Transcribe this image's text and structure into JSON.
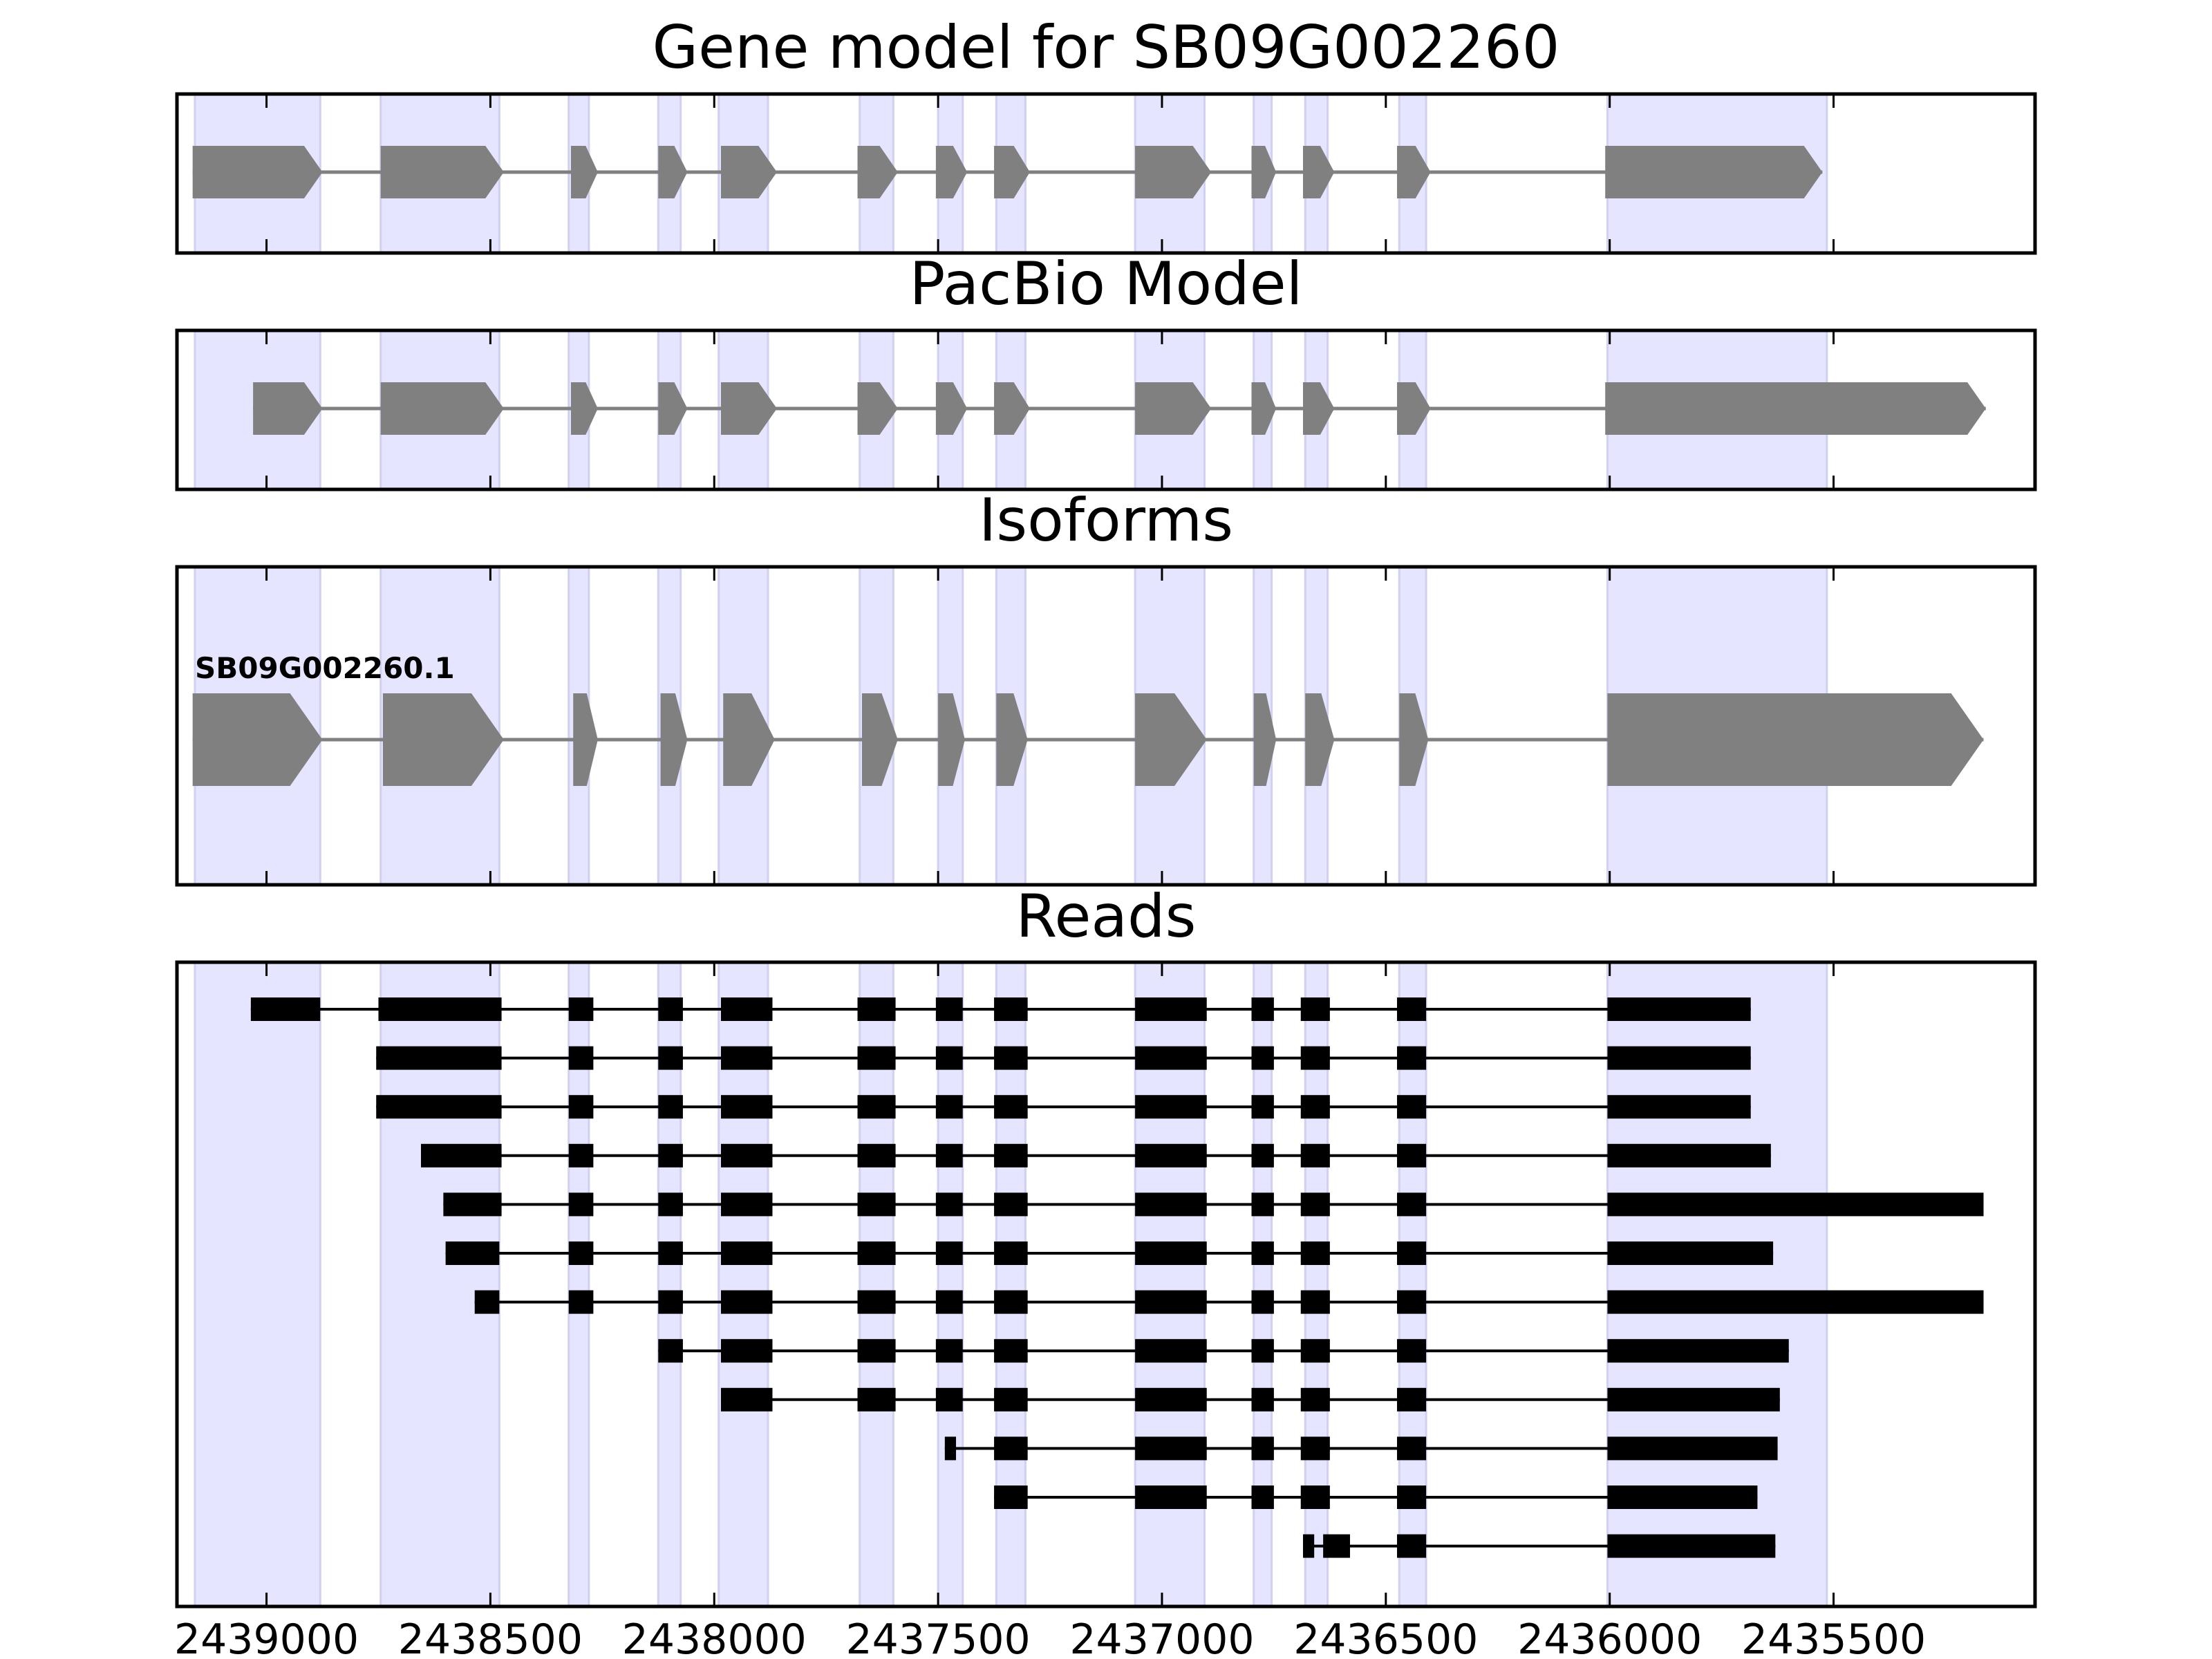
{
  "chart_data": {
    "type": "gene-structure",
    "axis": {
      "xlim": [
        2439200,
        2435050
      ],
      "reversed": true,
      "ticks": [
        2439000,
        2438500,
        2438000,
        2437500,
        2437000,
        2436500,
        2436000,
        2435500
      ],
      "tick_labels": [
        "2439000",
        "2438500",
        "2438000",
        "2437500",
        "2437000",
        "2436500",
        "2436000",
        "2435500"
      ]
    },
    "colors": {
      "shade": "#e5e5ff",
      "exon": "#808080",
      "intron": "#808080",
      "read": "#000000"
    },
    "shaded_regions": [
      [
        2439160,
        2438880
      ],
      [
        2438745,
        2438480
      ],
      [
        2438325,
        2438280
      ],
      [
        2438125,
        2438075
      ],
      [
        2437990,
        2437880
      ],
      [
        2437675,
        2437600
      ],
      [
        2437500,
        2437445
      ],
      [
        2437370,
        2437305
      ],
      [
        2437060,
        2436905
      ],
      [
        2436795,
        2436755
      ],
      [
        2436680,
        2436630
      ],
      [
        2436470,
        2436410
      ],
      [
        2436005,
        2435515
      ]
    ],
    "panels": [
      {
        "title": "Gene model for SB09G002260",
        "models": [
          {
            "label": "",
            "exons": [
              [
                2439165,
                2438875
              ],
              [
                2438745,
                2438470
              ],
              [
                2438320,
                2438260
              ],
              [
                2438125,
                2438060
              ],
              [
                2437985,
                2437860
              ],
              [
                2437680,
                2437590
              ],
              [
                2437505,
                2437435
              ],
              [
                2437375,
                2437295
              ],
              [
                2437060,
                2436890
              ],
              [
                2436800,
                2436745
              ],
              [
                2436685,
                2436615
              ],
              [
                2436475,
                2436400
              ],
              [
                2436010,
                2435525
              ]
            ]
          }
        ]
      },
      {
        "title": "PacBio Model",
        "models": [
          {
            "label": "",
            "exons": [
              [
                2439030,
                2438875
              ],
              [
                2438745,
                2438470
              ],
              [
                2438320,
                2438260
              ],
              [
                2438125,
                2438060
              ],
              [
                2437985,
                2437860
              ],
              [
                2437680,
                2437590
              ],
              [
                2437505,
                2437435
              ],
              [
                2437375,
                2437295
              ],
              [
                2437060,
                2436890
              ],
              [
                2436800,
                2436745
              ],
              [
                2436685,
                2436615
              ],
              [
                2436475,
                2436400
              ],
              [
                2436010,
                2435160
              ]
            ]
          }
        ]
      },
      {
        "title": "Isoforms",
        "models": [
          {
            "label": "SB09G002260.1",
            "exons": [
              [
                2439165,
                2438875
              ],
              [
                2438740,
                2438470
              ],
              [
                2438315,
                2438260
              ],
              [
                2438120,
                2438060
              ],
              [
                2437980,
                2437865
              ],
              [
                2437670,
                2437590
              ],
              [
                2437500,
                2437440
              ],
              [
                2437370,
                2437300
              ],
              [
                2437060,
                2436900
              ],
              [
                2436795,
                2436745
              ],
              [
                2436680,
                2436615
              ],
              [
                2436470,
                2436405
              ],
              [
                2436005,
                2435165
              ]
            ]
          }
        ]
      },
      {
        "title": "Reads",
        "reads": [
          {
            "exons": [
              [
                2439035,
                2438880
              ],
              [
                2438750,
                2438475
              ],
              [
                2438325,
                2438270
              ],
              [
                2438125,
                2438070
              ],
              [
                2437985,
                2437870
              ],
              [
                2437680,
                2437595
              ],
              [
                2437505,
                2437445
              ],
              [
                2437375,
                2437300
              ],
              [
                2437060,
                2436900
              ],
              [
                2436800,
                2436750
              ],
              [
                2436690,
                2436625
              ],
              [
                2436475,
                2436410
              ],
              [
                2436005,
                2435685
              ]
            ]
          },
          {
            "exons": [
              [
                2438755,
                2438475
              ],
              [
                2438325,
                2438270
              ],
              [
                2438125,
                2438070
              ],
              [
                2437985,
                2437870
              ],
              [
                2437680,
                2437595
              ],
              [
                2437505,
                2437445
              ],
              [
                2437375,
                2437300
              ],
              [
                2437060,
                2436900
              ],
              [
                2436800,
                2436750
              ],
              [
                2436690,
                2436625
              ],
              [
                2436475,
                2436410
              ],
              [
                2436005,
                2435685
              ]
            ]
          },
          {
            "exons": [
              [
                2438755,
                2438475
              ],
              [
                2438325,
                2438270
              ],
              [
                2438125,
                2438070
              ],
              [
                2437985,
                2437870
              ],
              [
                2437680,
                2437595
              ],
              [
                2437505,
                2437445
              ],
              [
                2437375,
                2437300
              ],
              [
                2437060,
                2436900
              ],
              [
                2436800,
                2436750
              ],
              [
                2436690,
                2436625
              ],
              [
                2436475,
                2436410
              ],
              [
                2436005,
                2435685
              ]
            ]
          },
          {
            "exons": [
              [
                2438655,
                2438475
              ],
              [
                2438325,
                2438270
              ],
              [
                2438125,
                2438070
              ],
              [
                2437985,
                2437870
              ],
              [
                2437680,
                2437595
              ],
              [
                2437505,
                2437445
              ],
              [
                2437375,
                2437300
              ],
              [
                2437060,
                2436900
              ],
              [
                2436800,
                2436750
              ],
              [
                2436690,
                2436625
              ],
              [
                2436475,
                2436410
              ],
              [
                2436005,
                2435640
              ]
            ]
          },
          {
            "exons": [
              [
                2438605,
                2438475
              ],
              [
                2438325,
                2438270
              ],
              [
                2438125,
                2438070
              ],
              [
                2437985,
                2437870
              ],
              [
                2437680,
                2437595
              ],
              [
                2437505,
                2437445
              ],
              [
                2437375,
                2437300
              ],
              [
                2437060,
                2436900
              ],
              [
                2436800,
                2436750
              ],
              [
                2436690,
                2436625
              ],
              [
                2436475,
                2436410
              ],
              [
                2436005,
                2435165
              ]
            ]
          },
          {
            "exons": [
              [
                2438600,
                2438480
              ],
              [
                2438325,
                2438270
              ],
              [
                2438125,
                2438070
              ],
              [
                2437985,
                2437870
              ],
              [
                2437680,
                2437595
              ],
              [
                2437505,
                2437445
              ],
              [
                2437375,
                2437300
              ],
              [
                2437060,
                2436900
              ],
              [
                2436800,
                2436750
              ],
              [
                2436690,
                2436625
              ],
              [
                2436475,
                2436410
              ],
              [
                2436005,
                2435635
              ]
            ]
          },
          {
            "exons": [
              [
                2438535,
                2438480
              ],
              [
                2438325,
                2438270
              ],
              [
                2438125,
                2438070
              ],
              [
                2437985,
                2437870
              ],
              [
                2437680,
                2437595
              ],
              [
                2437505,
                2437445
              ],
              [
                2437375,
                2437300
              ],
              [
                2437060,
                2436900
              ],
              [
                2436800,
                2436750
              ],
              [
                2436690,
                2436625
              ],
              [
                2436475,
                2436410
              ],
              [
                2436005,
                2435165
              ]
            ]
          },
          {
            "exons": [
              [
                2438125,
                2438070
              ],
              [
                2437985,
                2437870
              ],
              [
                2437680,
                2437595
              ],
              [
                2437505,
                2437445
              ],
              [
                2437375,
                2437300
              ],
              [
                2437060,
                2436900
              ],
              [
                2436800,
                2436750
              ],
              [
                2436690,
                2436625
              ],
              [
                2436475,
                2436410
              ],
              [
                2436005,
                2435600
              ]
            ]
          },
          {
            "exons": [
              [
                2437985,
                2437870
              ],
              [
                2437680,
                2437595
              ],
              [
                2437505,
                2437445
              ],
              [
                2437375,
                2437300
              ],
              [
                2437060,
                2436900
              ],
              [
                2436800,
                2436750
              ],
              [
                2436690,
                2436625
              ],
              [
                2436475,
                2436410
              ],
              [
                2436005,
                2435620
              ]
            ]
          },
          {
            "exons": [
              [
                2437485,
                2437460
              ],
              [
                2437375,
                2437300
              ],
              [
                2437060,
                2436900
              ],
              [
                2436800,
                2436750
              ],
              [
                2436690,
                2436625
              ],
              [
                2436475,
                2436410
              ],
              [
                2436005,
                2435625
              ]
            ]
          },
          {
            "exons": [
              [
                2437375,
                2437300
              ],
              [
                2437060,
                2436900
              ],
              [
                2436800,
                2436750
              ],
              [
                2436690,
                2436625
              ],
              [
                2436475,
                2436410
              ],
              [
                2436005,
                2435670
              ]
            ]
          },
          {
            "exons": [
              [
                2436685,
                2436660
              ],
              [
                2436640,
                2436580
              ],
              [
                2436475,
                2436410
              ],
              [
                2436005,
                2435630
              ]
            ]
          }
        ]
      }
    ]
  }
}
